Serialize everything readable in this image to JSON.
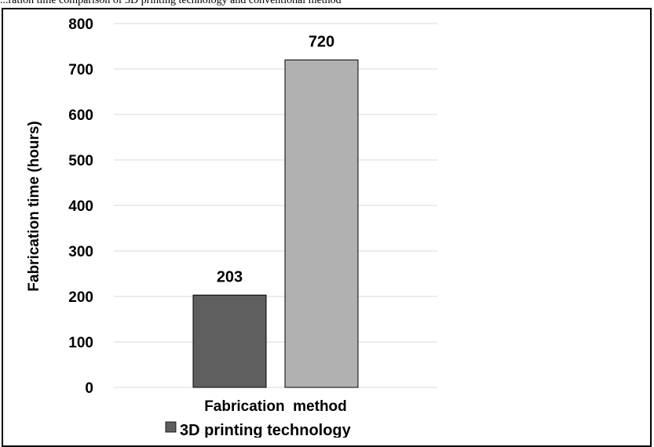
{
  "caption": "...ration time comparison of 3D printing technology and conventional method",
  "chart_data": {
    "type": "bar",
    "categories": [
      "Fabrication method"
    ],
    "series": [
      {
        "name": "3D printing technology",
        "values": [
          203
        ],
        "color": "#5f5f5f"
      },
      {
        "name": "",
        "values": [
          720
        ],
        "color": "#b1b1b1"
      }
    ],
    "data_labels": [
      "203",
      "720"
    ],
    "title": "",
    "xlabel": "Fabrication  method",
    "ylabel": "Fabrication time (hours)",
    "ylim": [
      0,
      800
    ],
    "yticks": [
      0,
      100,
      200,
      300,
      400,
      500,
      600,
      700,
      800
    ],
    "grid": true,
    "legend_position": "bottom"
  }
}
